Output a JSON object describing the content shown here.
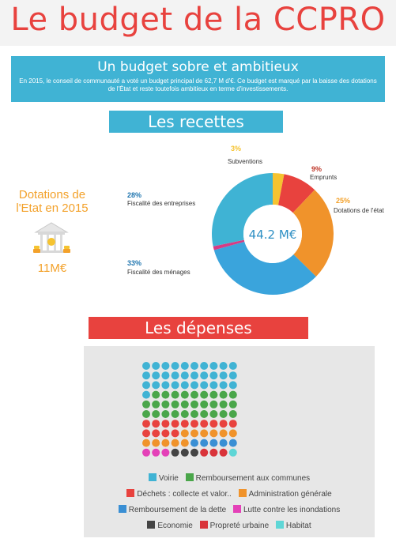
{
  "header": {
    "title": "Le budget de la CCPRO"
  },
  "intro": {
    "subtitle": "Un budget sobre et ambitieux",
    "text": "En 2015, le conseil de communauté a voté un budget principal de 62,7 M d'€. Ce budget est marqué par la baisse des dotations de l'État et reste toutefois ambitieux en terme d'investissements."
  },
  "recettes": {
    "heading": "Les recettes",
    "dotations_label": "Dotations de l'Etat en 2015",
    "dotations_amount": "11M€",
    "bank_icon": "bank-icon"
  },
  "depenses": {
    "heading": "Les dépenses"
  },
  "chart_data": [
    {
      "type": "pie",
      "title": "Les recettes",
      "center_label": "44.2 M€",
      "slices": [
        {
          "label": "Subventions",
          "pct_label": "3%",
          "value": 3,
          "color": "#f5c330"
        },
        {
          "label": "Emprunts",
          "pct_label": "9%",
          "value": 9,
          "color": "#e8423e"
        },
        {
          "label": "Dotations de l'état",
          "pct_label": "25%",
          "value": 25,
          "color": "#f0932b"
        },
        {
          "label": "Fiscalité des ménages",
          "pct_label": "33%",
          "value": 33,
          "color": "#3aa4dc"
        },
        {
          "label": "",
          "pct_label": "",
          "value": 1,
          "color": "#d63b84"
        },
        {
          "label": "Fiscalité des entreprises",
          "pct_label": "28%",
          "value": 28,
          "color": "#3fb3d4"
        }
      ],
      "label_colors": {
        "Subventions": "#f5c330",
        "Emprunts": "#c0392b",
        "Dotations de l'état": "#f3a12a",
        "Fiscalité des ménages": "#2277b0",
        "Fiscalité des entreprises": "#2277b0"
      }
    },
    {
      "type": "waffle",
      "title": "Les dépenses",
      "columns": 10,
      "categories": [
        {
          "name": "Voirie",
          "color": "#40b3d4",
          "count": 31
        },
        {
          "name": "Remboursement aux communes",
          "color": "#4aa64a",
          "count": 29
        },
        {
          "name": "Déchets : collecte et valor..",
          "color": "#e8423e",
          "count": 14
        },
        {
          "name": "Administration générale",
          "color": "#f0932b",
          "count": 11
        },
        {
          "name": "Remboursement de la dette",
          "color": "#3a8fd4",
          "count": 5
        },
        {
          "name": "Lutte contre les inondations",
          "color": "#e441b8",
          "count": 3
        },
        {
          "name": "Economie",
          "color": "#444444",
          "count": 3
        },
        {
          "name": "Propreté urbaine",
          "color": "#d9343a",
          "count": 3
        },
        {
          "name": "Habitat",
          "color": "#5ed6d6",
          "count": 1
        }
      ]
    }
  ]
}
